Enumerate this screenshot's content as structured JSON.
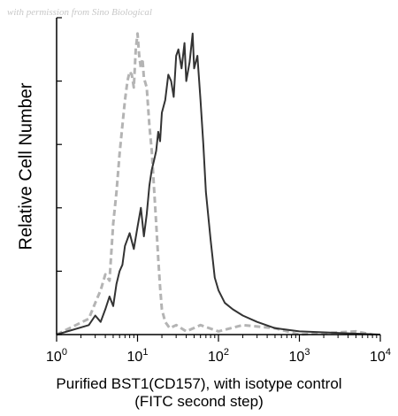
{
  "watermark": "with permission from Sino Biological",
  "chart_data": {
    "type": "line",
    "title": "",
    "xlabel_line1": "Purified BST1(CD157), with isotype control",
    "xlabel_line2": "(FITC second step)",
    "ylabel": "Relative Cell Number",
    "x_scale": "log",
    "xlim": [
      1,
      10000
    ],
    "ylim": [
      0,
      100
    ],
    "x_ticks": [
      {
        "value": 1,
        "base": "10",
        "exp": "0"
      },
      {
        "value": 10,
        "base": "10",
        "exp": "1"
      },
      {
        "value": 100,
        "base": "10",
        "exp": "2"
      },
      {
        "value": 1000,
        "base": "10",
        "exp": "3"
      },
      {
        "value": 10000,
        "base": "10",
        "exp": "4"
      }
    ],
    "grid": false,
    "legend": "none",
    "series": [
      {
        "style": "dashed",
        "color": "#b4b4b4",
        "x": [
          1,
          2.5,
          3,
          3.5,
          4,
          4.5,
          5,
          5.5,
          6,
          6.5,
          7,
          7.5,
          8,
          8.5,
          9,
          9.5,
          10,
          10.5,
          11,
          11.5,
          12,
          13,
          14,
          15,
          16,
          17,
          18,
          19,
          20,
          22,
          25,
          30,
          40,
          60,
          100,
          200,
          500,
          1000,
          5000,
          8000
        ],
        "y": [
          0,
          5,
          10,
          14,
          19,
          17,
          35,
          45,
          57,
          66,
          74,
          80,
          83,
          82,
          78,
          90,
          95,
          88,
          84,
          87,
          81,
          78,
          66,
          58,
          46,
          35,
          24,
          15,
          8,
          4,
          2,
          3,
          1,
          3,
          1,
          3,
          2,
          0,
          1,
          0
        ]
      },
      {
        "style": "solid",
        "color": "#333333",
        "x": [
          1,
          2.5,
          3,
          3.5,
          4,
          4.5,
          5,
          5.5,
          6,
          6.5,
          7,
          8,
          9,
          10,
          11,
          12,
          13,
          14,
          15,
          16,
          17,
          18,
          19,
          20,
          22,
          24,
          26,
          28,
          30,
          32,
          35,
          38,
          40,
          44,
          48,
          50,
          55,
          60,
          65,
          70,
          80,
          90,
          100,
          120,
          150,
          200,
          300,
          500,
          1000,
          10000
        ],
        "y": [
          0,
          3,
          6,
          4,
          8,
          12,
          9,
          16,
          20,
          22,
          28,
          32,
          27,
          34,
          40,
          31,
          38,
          47,
          52,
          55,
          58,
          64,
          61,
          70,
          74,
          82,
          80,
          75,
          88,
          90,
          84,
          92,
          80,
          86,
          95,
          84,
          88,
          74,
          60,
          45,
          30,
          18,
          14,
          10,
          8,
          6,
          4,
          2,
          1,
          0
        ]
      }
    ]
  }
}
